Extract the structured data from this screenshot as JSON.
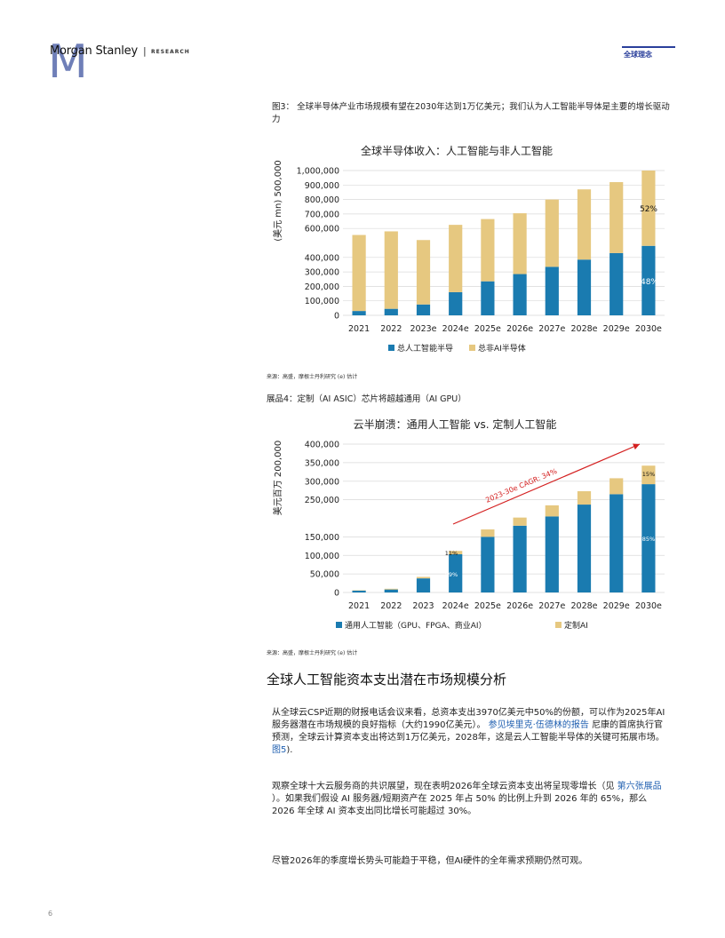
{
  "header": {
    "logo_m": "M",
    "logo_text": "Morgan Stanley",
    "logo_sep": "|",
    "logo_research": "RESEARCH",
    "section": "全球理念"
  },
  "exhibit3": {
    "title": "图3： 全球半导体产业市场规模有望在2030年达到1万亿美元；我们认为人工智能半导体是主要的增长驱动力",
    "source": "来源：高盛，摩根士丹利研究 (e) 估计"
  },
  "exhibit4": {
    "title": "展品4：定制（AI ASIC）芯片将超越通用（AI GPU）",
    "source": "来源：高盛，摩根士丹利研究 (e) 估计"
  },
  "chart_data": [
    {
      "type": "bar",
      "title": "全球半导体收入：人工智能与非人工智能",
      "ylabel": "(美元 mn) 500,000",
      "categories": [
        "2021",
        "2022",
        "2023e",
        "2024e",
        "2025e",
        "2026e",
        "2027e",
        "2028e",
        "2029e",
        "2030e"
      ],
      "stacked": true,
      "series": [
        {
          "name": "总人工智能半导",
          "color": "#1a7bb0",
          "values": [
            30000,
            45000,
            75000,
            160000,
            235000,
            285000,
            335000,
            385000,
            430000,
            480000
          ]
        },
        {
          "name": "总非AI半导体",
          "color": "#e6c880",
          "values": [
            525000,
            535000,
            445000,
            465000,
            430000,
            420000,
            465000,
            485000,
            490000,
            520000
          ]
        }
      ],
      "yticks": [
        "0",
        "100,000",
        "200,000",
        "300,000",
        "400,000",
        "600,000",
        "700,000",
        "800,000",
        "900,000",
        "1,000,000"
      ],
      "ylim": [
        0,
        1000000
      ],
      "annotations": [
        "52%",
        "48%"
      ],
      "legend_position": "bottom"
    },
    {
      "type": "bar",
      "title": "云半崩溃：通用人工智能 vs. 定制人工智能",
      "ylabel": "美元百万 200,000",
      "categories": [
        "2021",
        "2022",
        "2023",
        "2024e",
        "2025e",
        "2026e",
        "2027e",
        "2028e",
        "2029e",
        "2030e"
      ],
      "stacked": true,
      "series": [
        {
          "name": "通用人工智能（GPU、FPGA、商业AI）",
          "color": "#1a7bb0",
          "values": [
            5000,
            8000,
            38000,
            103000,
            150000,
            180000,
            205000,
            237000,
            265000,
            292000
          ]
        },
        {
          "name": "定制AI",
          "color": "#e6c880",
          "values": [
            1000,
            2000,
            4000,
            9000,
            20000,
            22000,
            30000,
            36000,
            43000,
            50000
          ]
        }
      ],
      "yticks": [
        "0",
        "50,000",
        "100,000",
        "150,000",
        "250,000",
        "300,000",
        "350,000",
        "400,000"
      ],
      "ylim": [
        0,
        400000
      ],
      "annotations": [
        "11%",
        "89%",
        "15%",
        "85%"
      ],
      "trend_label": "2023-30e CAGR: 34%",
      "legend_position": "bottom"
    }
  ],
  "section_heading": "全球人工智能资本支出潜在市场规模分析",
  "paragraphs": {
    "p1_text": "从全球云CSP近期的财报电话会议来看，总资本支出3970亿美元中50%的份额，可以作为2025年AI服务器潜在市场规模的良好指标（大约1990亿美元）。",
    "p1_link1": "参见埃里克·伍德林的报告",
    "p1_text2": "尼康的首席执行官预测，全球云计算资本支出将达到1万亿美元，2028年，这是云人工智能半导体的关键可拓展市场。",
    "p1_link2": "图5",
    "p1_text3": ").",
    "p2_text": "观察全球十大云服务商的共识展望，现在表明2026年全球云资本支出将呈现零增长（见",
    "p2_link": "第六张展品",
    "p2_text2": "）。如果我们假设 AI 服务器/短期资产在 2025 年占 50% 的比例上升到 2026 年的 65%，那么 2026 年全球 AI 资本支出同比增长可能超过 30%。",
    "p3_text": "尽管2026年的季度增长势头可能趋于平稳，但AI硬件的全年需求预期仍然可观。"
  },
  "page_number": "6"
}
